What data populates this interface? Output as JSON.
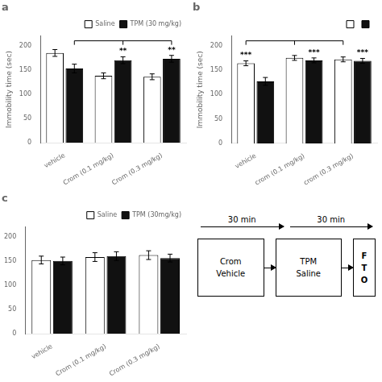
{
  "chart_data": [
    {
      "type": "bar",
      "title": "a",
      "ylabel": "Immobility time (sec)",
      "categories": [
        "vehicle",
        "Crom (0.1 mg/kg)",
        "Crom (0.3 mg/kg)"
      ],
      "series": [
        {
          "name": "Saline",
          "color": "#ffffff",
          "values": [
            185,
            138,
            136
          ],
          "errors": [
            7,
            6,
            6
          ]
        },
        {
          "name": "TPM (30 mg/kg)",
          "color": "#111111",
          "values": [
            153,
            170,
            173
          ],
          "errors": [
            9,
            7,
            7
          ]
        }
      ],
      "edge_color": "#000000",
      "ylim": [
        0,
        220
      ],
      "yticks": [
        0,
        50,
        100,
        150,
        200
      ],
      "grid": false,
      "legend": "upper right",
      "annotations": [
        {
          "text": "**",
          "category": "Crom (0.1 mg/kg)",
          "series_index": 1
        },
        {
          "text": "**",
          "category": "Crom (0.3 mg/kg)",
          "series_index": 1
        }
      ],
      "bracket": {
        "y": 210,
        "series_index": 1
      }
    },
    {
      "type": "bar",
      "title": "b",
      "ylabel": "Immobility time (sec)",
      "categories": [
        "vehicle",
        "crom (0.1 mg/kg)",
        "crom (0.3 mg/kg)"
      ],
      "series": [
        {
          "color": "#ffffff",
          "values": [
            164,
            175,
            172
          ],
          "errors": [
            5,
            5,
            5
          ]
        },
        {
          "color": "#111111",
          "values": [
            127,
            170,
            169
          ],
          "errors": [
            8,
            5,
            5
          ]
        }
      ],
      "edge_color": "#000000",
      "ylim": [
        0,
        220
      ],
      "yticks": [
        0,
        50,
        100,
        150,
        200
      ],
      "grid": false,
      "legend": "upper right",
      "annotations": [
        {
          "text": "***",
          "category": "vehicle",
          "series_index": 0
        },
        {
          "text": "***",
          "category": "crom (0.1 mg/kg)",
          "series_index": 1
        },
        {
          "text": "***",
          "category": "crom (0.3 mg/kg)",
          "series_index": 1
        }
      ],
      "bracket": {
        "y": 210,
        "series_index": 0
      }
    },
    {
      "type": "bar",
      "title": "c",
      "categories": [
        "vehicle",
        "Crom (0.1 mg/kg)",
        "Crom (0.3 mg/kg)"
      ],
      "series": [
        {
          "name": "Saline",
          "color": "#ffffff",
          "values": [
            152,
            158,
            162
          ],
          "errors": [
            8,
            9,
            9
          ]
        },
        {
          "name": "TPM (30mg/kg)",
          "color": "#111111",
          "values": [
            150,
            160,
            156
          ],
          "errors": [
            8,
            9,
            8
          ]
        }
      ],
      "edge_color": "#000000",
      "ylim": [
        0,
        220
      ],
      "yticks": [
        0,
        50,
        100,
        150,
        200
      ],
      "grid": false,
      "legend": "upper right"
    },
    {
      "type": "diagram",
      "timeline": [
        "30 min",
        "30 min"
      ],
      "boxes": [
        [
          "Crom",
          "Vehicle"
        ],
        [
          "TPM",
          "Saline"
        ],
        [
          "F",
          "T",
          "O"
        ]
      ]
    }
  ]
}
